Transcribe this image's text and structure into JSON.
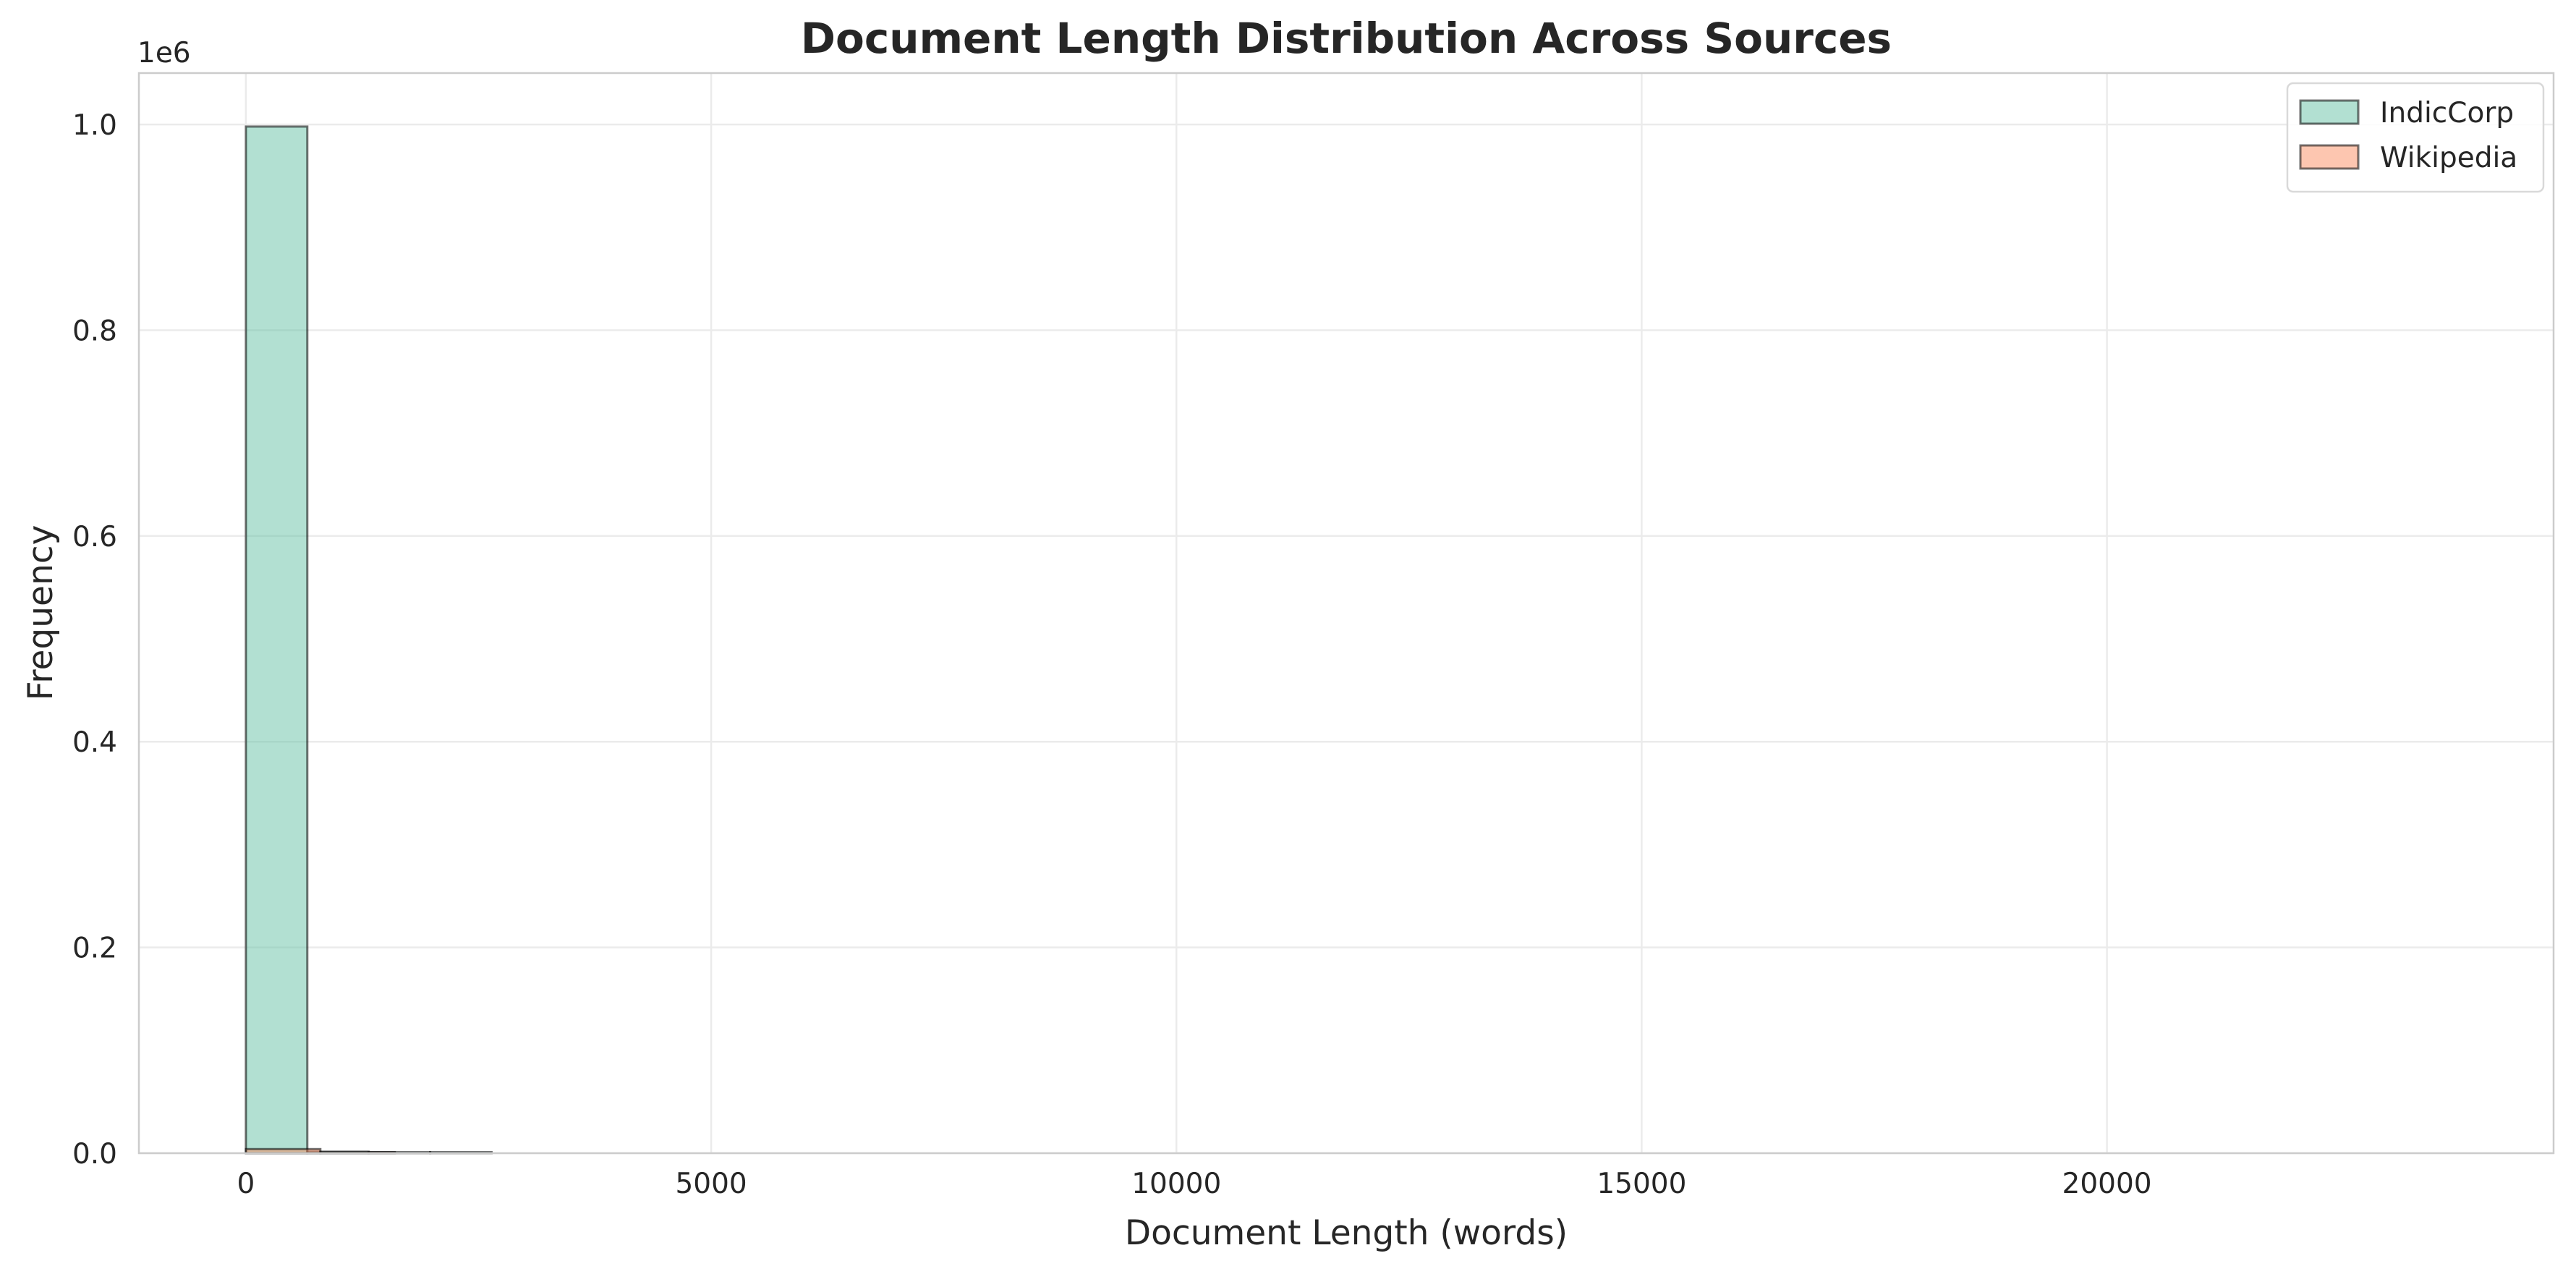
{
  "chart_data": {
    "type": "histogram",
    "title": "Document Length Distribution Across Sources",
    "xlabel": "Document Length (words)",
    "ylabel": "Frequency",
    "y_offset_label": "1e6",
    "xlim": [
      -1150,
      24800
    ],
    "ylim": [
      0,
      1.05
    ],
    "x_ticks": [
      0,
      5000,
      10000,
      15000,
      20000
    ],
    "x_tick_labels": [
      "0",
      "5000",
      "10000",
      "15000",
      "20000"
    ],
    "y_ticks": [
      0.0,
      0.2,
      0.4,
      0.6,
      0.8,
      1.0
    ],
    "y_tick_labels": [
      "0.0",
      "0.2",
      "0.4",
      "0.6",
      "0.8",
      "1.0"
    ],
    "grid": true,
    "legend_position": "top-right",
    "series": [
      {
        "name": "IndicCorp",
        "color": "#66c2a5",
        "bins": [
          {
            "x0": 0,
            "x1": 660,
            "value": 0.998
          },
          {
            "x0": 660,
            "x1": 1320,
            "value": 0.0015
          },
          {
            "x0": 1320,
            "x1": 1980,
            "value": 0.0004
          },
          {
            "x0": 1980,
            "x1": 2640,
            "value": 0.0001
          }
        ]
      },
      {
        "name": "Wikipedia",
        "color": "#fc8d62",
        "bins": [
          {
            "x0": 0,
            "x1": 800,
            "value": 0.004
          },
          {
            "x0": 800,
            "x1": 1600,
            "value": 0.0006
          }
        ]
      }
    ]
  }
}
